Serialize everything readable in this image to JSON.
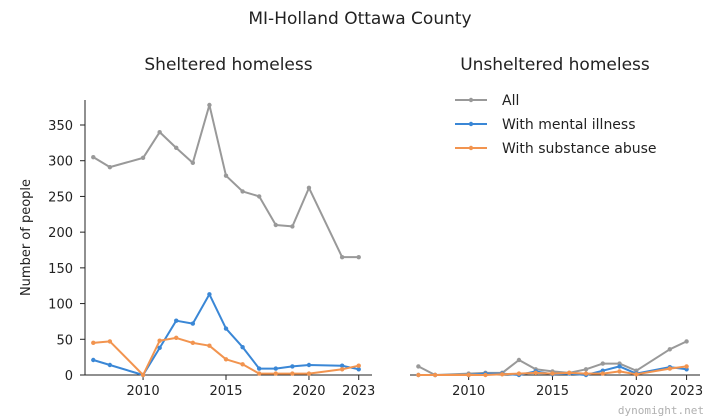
{
  "title": "MI-Holland Ottawa County",
  "watermark": "dynomight.net",
  "colors": {
    "all": "#999999",
    "mental": "#3a87d6",
    "substance": "#f2944f",
    "axis": "#222222"
  },
  "legend": {
    "position": "top-right",
    "items": [
      "All",
      "With mental illness",
      "With substance abuse"
    ]
  },
  "chart_data": [
    {
      "type": "line",
      "title": "Sheltered homeless",
      "ylabel": "Number of people",
      "xlim": [
        2006.5,
        2023.8
      ],
      "ylim": [
        0,
        385
      ],
      "xticks": [
        2010,
        2015,
        2020,
        2023
      ],
      "yticks": [
        0,
        50,
        100,
        150,
        200,
        250,
        300,
        350
      ],
      "x": [
        2007,
        2008,
        2010,
        2011,
        2012,
        2013,
        2014,
        2015,
        2016,
        2017,
        2018,
        2019,
        2020,
        2022,
        2023
      ],
      "series": [
        {
          "name": "All",
          "color_key": "all",
          "values": [
            305,
            291,
            304,
            340,
            318,
            297,
            378,
            279,
            257,
            250,
            210,
            208,
            262,
            165,
            165
          ]
        },
        {
          "name": "With mental illness",
          "color_key": "mental",
          "values": [
            21,
            14,
            0,
            38,
            76,
            72,
            113,
            65,
            39,
            9,
            9,
            12,
            14,
            13,
            8
          ]
        },
        {
          "name": "With substance abuse",
          "color_key": "substance",
          "values": [
            45,
            47,
            0,
            48,
            52,
            45,
            41,
            22,
            15,
            2,
            2,
            2,
            2,
            8,
            13
          ]
        }
      ]
    },
    {
      "type": "line",
      "title": "Unsheltered homeless",
      "ylabel": "",
      "xlim": [
        2006.5,
        2023.8
      ],
      "ylim": [
        0,
        385
      ],
      "xticks": [
        2010,
        2015,
        2020,
        2023
      ],
      "yticks": [],
      "x": [
        2007,
        2008,
        2010,
        2011,
        2012,
        2013,
        2014,
        2015,
        2016,
        2017,
        2018,
        2019,
        2020,
        2022,
        2023
      ],
      "series": [
        {
          "name": "All",
          "color_key": "all",
          "values": [
            12,
            0,
            2,
            3,
            3,
            21,
            8,
            5,
            3,
            8,
            16,
            16,
            6,
            36,
            47
          ]
        },
        {
          "name": "With mental illness",
          "color_key": "mental",
          "values": [
            0,
            0,
            0,
            2,
            2,
            0,
            5,
            1,
            2,
            0,
            6,
            12,
            2,
            11,
            8
          ]
        },
        {
          "name": "With substance abuse",
          "color_key": "substance",
          "values": [
            0,
            0,
            0,
            0,
            1,
            2,
            3,
            2,
            3,
            2,
            2,
            5,
            1,
            9,
            12
          ]
        }
      ]
    }
  ]
}
